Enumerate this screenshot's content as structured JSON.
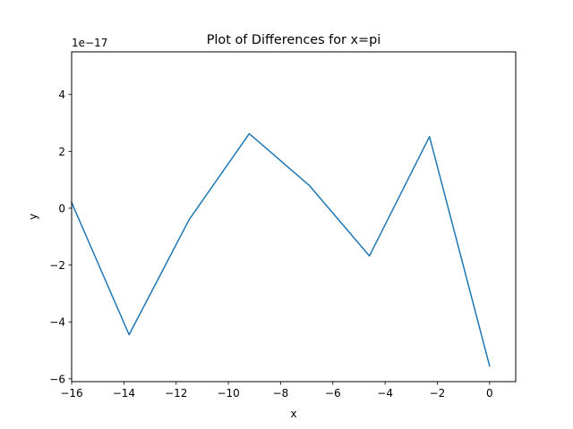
{
  "chart_data": {
    "type": "line",
    "title": "Plot of Differences for x=pi",
    "xlabel": "x",
    "ylabel": "y",
    "y_scale_label": "1e−17",
    "xlim": [
      -16,
      1
    ],
    "ylim": [
      -6.1,
      5.5
    ],
    "grid": false,
    "x_ticks": [
      -16,
      -14,
      -12,
      -10,
      -8,
      -6,
      -4,
      -2,
      0
    ],
    "x_tick_labels": [
      "−16",
      "−14",
      "−12",
      "−10",
      "−8",
      "−6",
      "−4",
      "−2",
      "0"
    ],
    "y_ticks": [
      -6,
      -4,
      -2,
      0,
      2,
      4
    ],
    "y_tick_labels": [
      "−6",
      "−4",
      "−2",
      "0",
      "2",
      "4"
    ],
    "series": [
      {
        "color": "#1f77b4",
        "x": [
          -16.0,
          -13.8,
          -11.5,
          -9.2,
          -6.9,
          -4.6,
          -2.3,
          0.0
        ],
        "y": [
          0.2,
          -4.45,
          -0.4,
          2.62,
          0.8,
          -1.68,
          2.52,
          -5.55
        ]
      }
    ]
  }
}
